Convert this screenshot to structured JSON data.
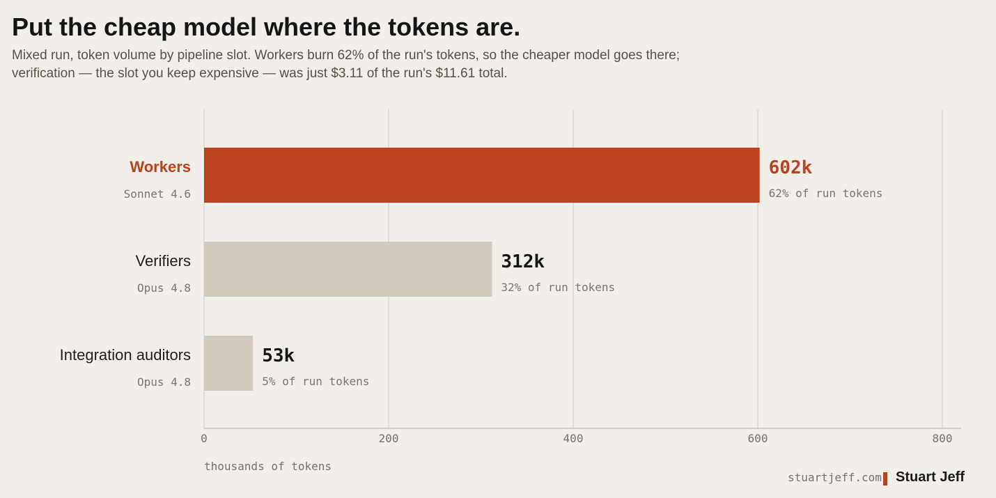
{
  "header": {
    "title": "Put the cheap model where the tokens are.",
    "subtitle": "Mixed run, token volume by pipeline slot. Workers burn 62% of the run's tokens, so the cheaper model goes there; verification — the slot you keep expensive — was just $3.11 of the run's $11.61 total."
  },
  "chart_data": {
    "type": "bar",
    "orientation": "horizontal",
    "categories": [
      "Workers",
      "Verifiers",
      "Integration auditors"
    ],
    "models": [
      "Sonnet 4.6",
      "Opus 4.8",
      "Opus 4.8"
    ],
    "values": [
      602,
      312,
      53
    ],
    "value_labels": [
      "602k",
      "312k",
      "53k"
    ],
    "share_labels": [
      "62% of run tokens",
      "32% of run tokens",
      "5% of run tokens"
    ],
    "highlight_index": 0,
    "xlim": [
      0,
      820
    ],
    "xticks": [
      0,
      200,
      400,
      600,
      800
    ],
    "xlabel": "thousands of tokens",
    "grid": true,
    "colors": {
      "highlight": "#b8431c",
      "muted": "#d0c9bd"
    }
  },
  "footer": {
    "site": "stuartjeff.com",
    "author": "Stuart Jeff"
  }
}
